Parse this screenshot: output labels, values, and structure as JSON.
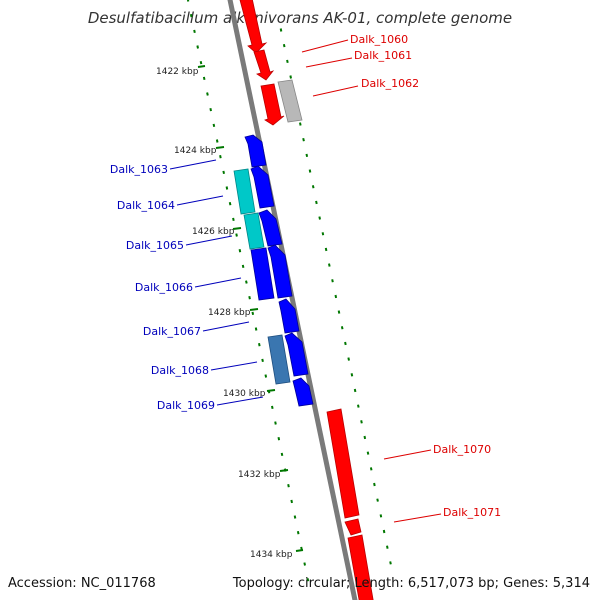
{
  "title": "Desulfatibacillum alkenivorans AK-01, complete genome",
  "footer": {
    "accession": "Accession: NC_011768",
    "summary": "Topology: circular; Length: 6,517,073 bp; Genes: 5,314"
  },
  "colors": {
    "forward_gene": "#ff0000",
    "reverse_gene": "#0000ff",
    "pseudo_gray": "#b8b8b8",
    "cyan_gene": "#00c8c8",
    "steelblue_gene": "#3a76b0",
    "backbone": "#7a7a7a",
    "tick_green": "#007700",
    "label_red": "#dd0000",
    "label_blue": "#0000bb"
  },
  "ruler": [
    "1422 kbp",
    "1424 kbp",
    "1426 kbp",
    "1428 kbp",
    "1430 kbp",
    "1432 kbp",
    "1434 kbp"
  ],
  "right_labels": [
    "Dalk_1060",
    "Dalk_1061",
    "Dalk_1062",
    "Dalk_1070",
    "Dalk_1071"
  ],
  "left_labels": [
    "Dalk_1063",
    "Dalk_1064",
    "Dalk_1065",
    "Dalk_1066",
    "Dalk_1067",
    "Dalk_1068",
    "Dalk_1069"
  ]
}
